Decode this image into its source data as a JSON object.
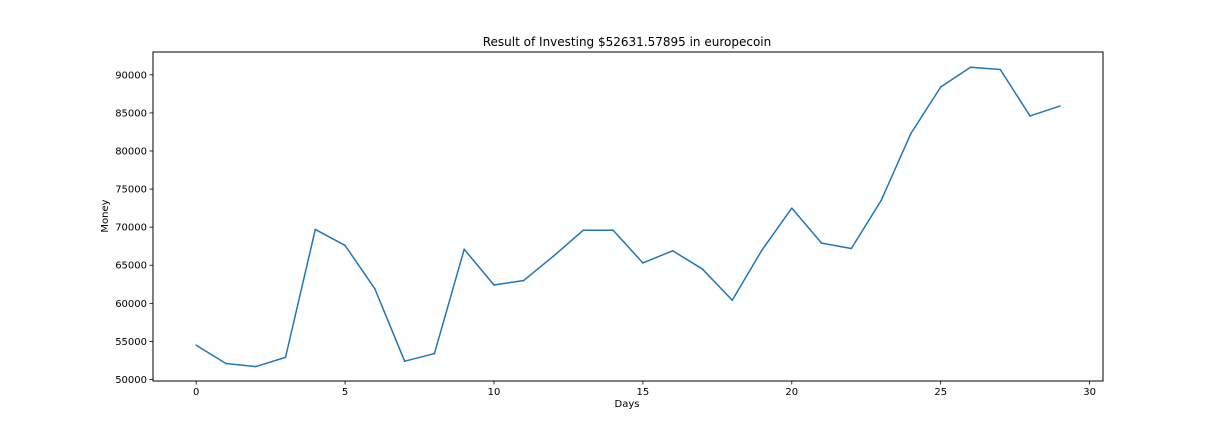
{
  "chart_data": {
    "type": "line",
    "title": "Result of Investing $52631.57895 in europecoin",
    "xlabel": "Days",
    "ylabel": "Money",
    "xlim": [
      -1.45,
      30.45
    ],
    "ylim": [
      49800,
      93000
    ],
    "x_ticks": [
      0,
      5,
      10,
      15,
      20,
      25,
      30
    ],
    "x_tick_labels": [
      "0",
      "5",
      "10",
      "15",
      "20",
      "25",
      "30"
    ],
    "y_ticks": [
      50000,
      55000,
      60000,
      65000,
      70000,
      75000,
      80000,
      85000,
      90000
    ],
    "y_tick_labels": [
      "50000",
      "55000",
      "60000",
      "65000",
      "70000",
      "75000",
      "80000",
      "85000",
      "90000"
    ],
    "grid": false,
    "legend": "none",
    "series": [
      {
        "color": "#1f77b4",
        "x": [
          0,
          1,
          2,
          3,
          4,
          5,
          6,
          7,
          8,
          9,
          10,
          11,
          12,
          13,
          14,
          15,
          16,
          17,
          18,
          19,
          20,
          21,
          22,
          23,
          24,
          25,
          26,
          27,
          28,
          29
        ],
        "y": [
          54500,
          52100,
          51700,
          52900,
          69700,
          67600,
          61900,
          52400,
          53400,
          67100,
          62400,
          63000,
          66200,
          69600,
          69600,
          65300,
          66900,
          64500,
          60400,
          67000,
          72500,
          67900,
          67200,
          73500,
          82300,
          88400,
          91000,
          90700,
          84600,
          85900
        ]
      }
    ]
  }
}
